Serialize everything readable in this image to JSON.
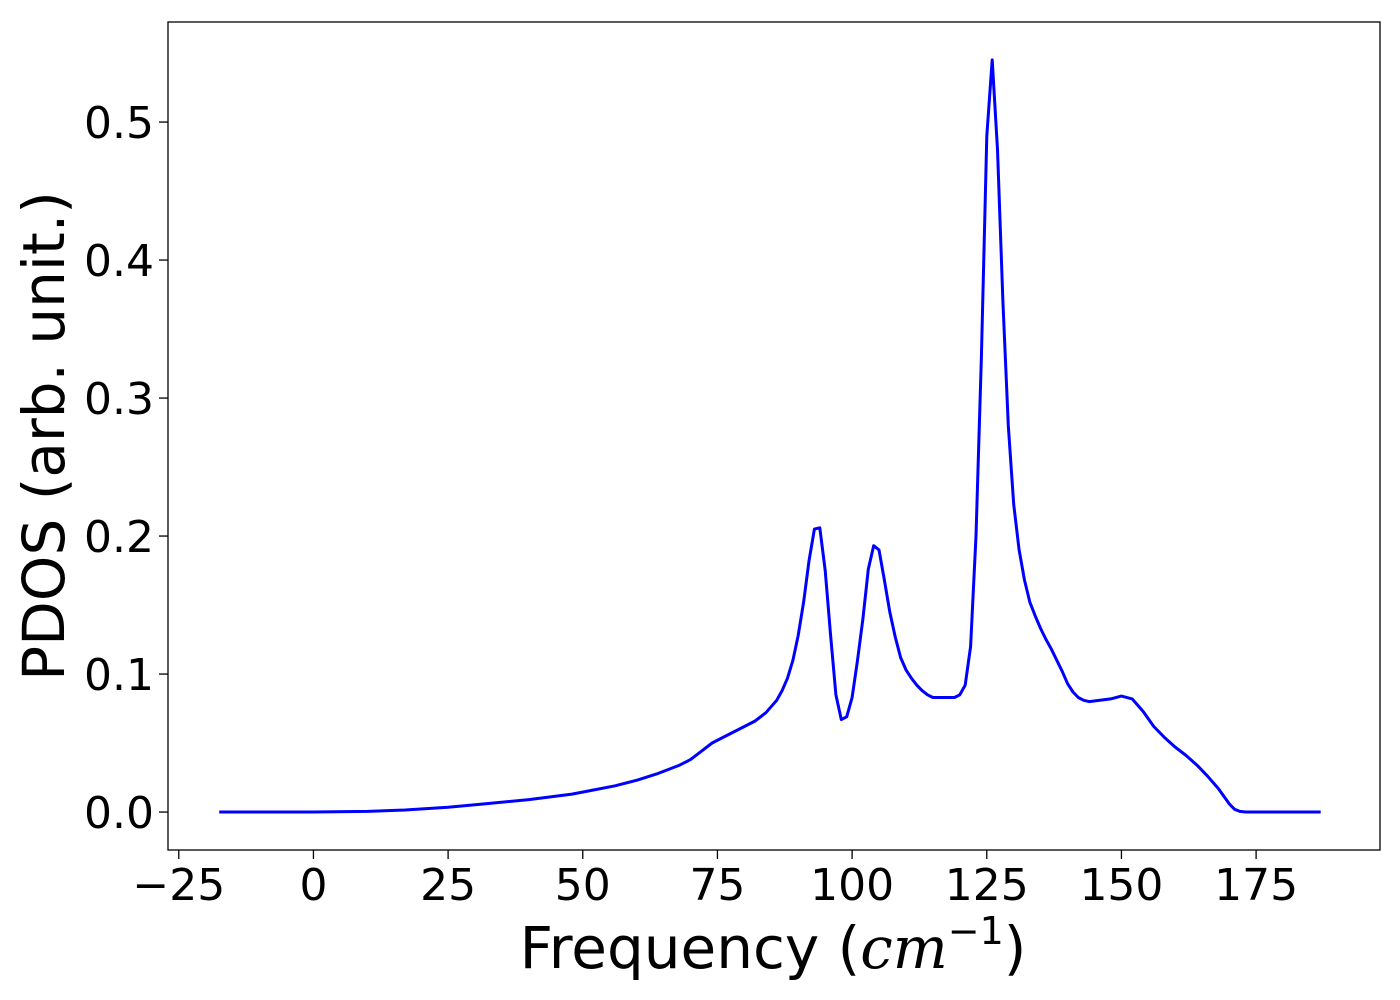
{
  "chart_data": {
    "type": "line",
    "xlabel": "Frequency",
    "xlabel_unit_base": "cm",
    "xlabel_unit_exp": "−1",
    "ylabel": "PDOS (arb. unit.)",
    "xlim": [
      -27,
      198
    ],
    "ylim": [
      -0.0275,
      0.5725
    ],
    "xticks": [
      -25,
      0,
      25,
      50,
      75,
      100,
      125,
      150,
      175
    ],
    "xtick_labels": [
      "−25",
      "0",
      "25",
      "50",
      "75",
      "100",
      "125",
      "150",
      "175"
    ],
    "yticks": [
      0.0,
      0.1,
      0.2,
      0.3,
      0.4,
      0.5
    ],
    "ytick_labels": [
      "0.0",
      "0.1",
      "0.2",
      "0.3",
      "0.4",
      "0.5"
    ],
    "grid": false,
    "series": [
      {
        "color": "#0000ff",
        "x": [
          -17.5,
          0,
          10,
          17,
          25,
          32,
          40,
          48,
          52,
          56,
          60,
          64,
          68,
          70,
          72,
          74,
          76,
          78,
          80,
          82,
          84,
          86,
          87,
          88,
          89,
          90,
          91,
          92,
          93,
          94,
          95,
          96,
          97,
          98,
          99,
          100,
          101,
          102,
          103,
          104,
          105,
          106,
          107,
          108,
          109,
          110,
          111,
          112,
          113,
          114,
          115,
          116,
          117,
          118,
          119,
          120,
          121,
          122,
          123,
          124,
          125,
          126,
          127,
          128,
          129,
          130,
          131,
          132,
          133,
          134,
          135,
          136,
          137,
          138,
          139,
          140,
          141,
          142,
          143,
          144,
          146,
          148,
          150,
          152,
          154,
          156,
          158,
          160,
          162,
          164,
          166,
          168,
          170,
          171,
          172,
          173,
          175,
          180,
          187
        ],
        "y": [
          0.0,
          0.0,
          0.0005,
          0.0015,
          0.0035,
          0.006,
          0.009,
          0.013,
          0.016,
          0.019,
          0.023,
          0.028,
          0.034,
          0.038,
          0.044,
          0.05,
          0.054,
          0.058,
          0.062,
          0.066,
          0.072,
          0.081,
          0.088,
          0.097,
          0.11,
          0.128,
          0.152,
          0.182,
          0.205,
          0.206,
          0.175,
          0.128,
          0.085,
          0.067,
          0.069,
          0.083,
          0.11,
          0.14,
          0.176,
          0.193,
          0.19,
          0.168,
          0.145,
          0.127,
          0.112,
          0.103,
          0.097,
          0.092,
          0.088,
          0.085,
          0.083,
          0.083,
          0.083,
          0.083,
          0.083,
          0.085,
          0.092,
          0.12,
          0.2,
          0.33,
          0.49,
          0.545,
          0.48,
          0.37,
          0.28,
          0.223,
          0.19,
          0.168,
          0.152,
          0.142,
          0.133,
          0.125,
          0.118,
          0.11,
          0.102,
          0.093,
          0.087,
          0.083,
          0.081,
          0.08,
          0.081,
          0.082,
          0.084,
          0.082,
          0.073,
          0.062,
          0.054,
          0.047,
          0.041,
          0.034,
          0.026,
          0.017,
          0.006,
          0.002,
          0.0005,
          0.0,
          0.0,
          0.0,
          0.0
        ]
      }
    ]
  }
}
